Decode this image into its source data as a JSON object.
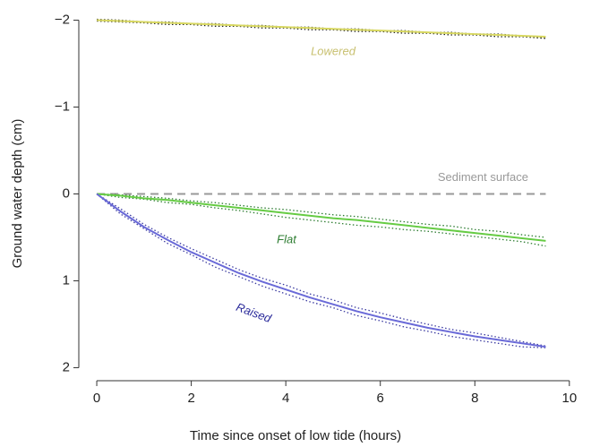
{
  "chart_data": {
    "type": "line",
    "xlabel": "Time since onset of low tide (hours)",
    "ylabel": "Ground water depth (cm)",
    "x": [
      0,
      0.5,
      1,
      1.5,
      2,
      2.5,
      3,
      3.5,
      4,
      4.5,
      5,
      5.5,
      6,
      6.5,
      7,
      7.5,
      8,
      8.5,
      9,
      9.5
    ],
    "series": [
      {
        "color": "#222222",
        "style": "dotted",
        "values": [
          -2.01,
          -2.0,
          -1.98,
          -1.98,
          -1.96,
          -1.96,
          -1.94,
          -1.94,
          -1.92,
          -1.92,
          -1.9,
          -1.9,
          -1.88,
          -1.88,
          -1.86,
          -1.86,
          -1.84,
          -1.84,
          -1.82,
          -1.8
        ]
      },
      {
        "color": "#222222",
        "style": "dotted",
        "values": [
          -1.99,
          -1.98,
          -1.97,
          -1.95,
          -1.95,
          -1.93,
          -1.93,
          -1.91,
          -1.91,
          -1.89,
          -1.89,
          -1.87,
          -1.87,
          -1.85,
          -1.85,
          -1.83,
          -1.83,
          -1.81,
          -1.81,
          -1.79
        ]
      },
      {
        "name": "Lowered",
        "color": "#d8d860",
        "label_color": "#c8c070",
        "style": "solid",
        "values": [
          -2.0,
          -1.99,
          -1.98,
          -1.97,
          -1.96,
          -1.95,
          -1.94,
          -1.93,
          -1.92,
          -1.91,
          -1.9,
          -1.89,
          -1.88,
          -1.87,
          -1.86,
          -1.85,
          -1.84,
          -1.83,
          -1.82,
          -1.81
        ]
      },
      {
        "color": "#2e7d32",
        "style": "dotted",
        "values": [
          0,
          0.04,
          0.06,
          0.1,
          0.12,
          0.16,
          0.19,
          0.23,
          0.27,
          0.3,
          0.33,
          0.36,
          0.38,
          0.41,
          0.43,
          0.46,
          0.49,
          0.52,
          0.55,
          0.6
        ]
      },
      {
        "color": "#2e7d32",
        "style": "dotted",
        "values": [
          0,
          0.01,
          0.03,
          0.05,
          0.08,
          0.1,
          0.13,
          0.16,
          0.18,
          0.21,
          0.24,
          0.26,
          0.29,
          0.32,
          0.35,
          0.37,
          0.41,
          0.43,
          0.47,
          0.5
        ]
      },
      {
        "name": "Flat",
        "color": "#66cc44",
        "label_color": "#2e7d32",
        "style": "solid",
        "values": [
          0,
          0.02,
          0.05,
          0.07,
          0.1,
          0.13,
          0.16,
          0.19,
          0.22,
          0.25,
          0.28,
          0.3,
          0.33,
          0.36,
          0.39,
          0.42,
          0.45,
          0.48,
          0.51,
          0.54
        ]
      },
      {
        "color": "#3a3aa0",
        "style": "dotted",
        "values": [
          0,
          0.23,
          0.4,
          0.57,
          0.7,
          0.84,
          0.95,
          1.06,
          1.15,
          1.24,
          1.31,
          1.4,
          1.46,
          1.53,
          1.58,
          1.64,
          1.68,
          1.72,
          1.76,
          1.77
        ]
      },
      {
        "color": "#3a3aa0",
        "style": "dotted",
        "values": [
          0,
          0.17,
          0.35,
          0.5,
          0.63,
          0.75,
          0.87,
          0.97,
          1.05,
          1.15,
          1.22,
          1.31,
          1.37,
          1.44,
          1.5,
          1.56,
          1.6,
          1.65,
          1.7,
          1.75
        ]
      },
      {
        "name": "Raised",
        "color": "#6a6ad8",
        "label_color": "#2a2a9a",
        "style": "solid",
        "values": [
          0,
          0.2,
          0.38,
          0.53,
          0.67,
          0.79,
          0.91,
          1.01,
          1.1,
          1.19,
          1.27,
          1.35,
          1.42,
          1.48,
          1.54,
          1.59,
          1.64,
          1.68,
          1.72,
          1.76
        ]
      }
    ],
    "reference_line": {
      "value": 0,
      "label": "Sediment surface",
      "color": "#999999"
    },
    "xlim": [
      -0.38,
      10.42
    ],
    "xticks": [
      0,
      2,
      4,
      6,
      8,
      10
    ],
    "ylim": [
      -2.15,
      2.15
    ],
    "invert_y": true,
    "yticks": [
      {
        "value": -2,
        "label": "−2"
      },
      {
        "value": -1,
        "label": "−1"
      },
      0,
      1,
      2
    ]
  }
}
